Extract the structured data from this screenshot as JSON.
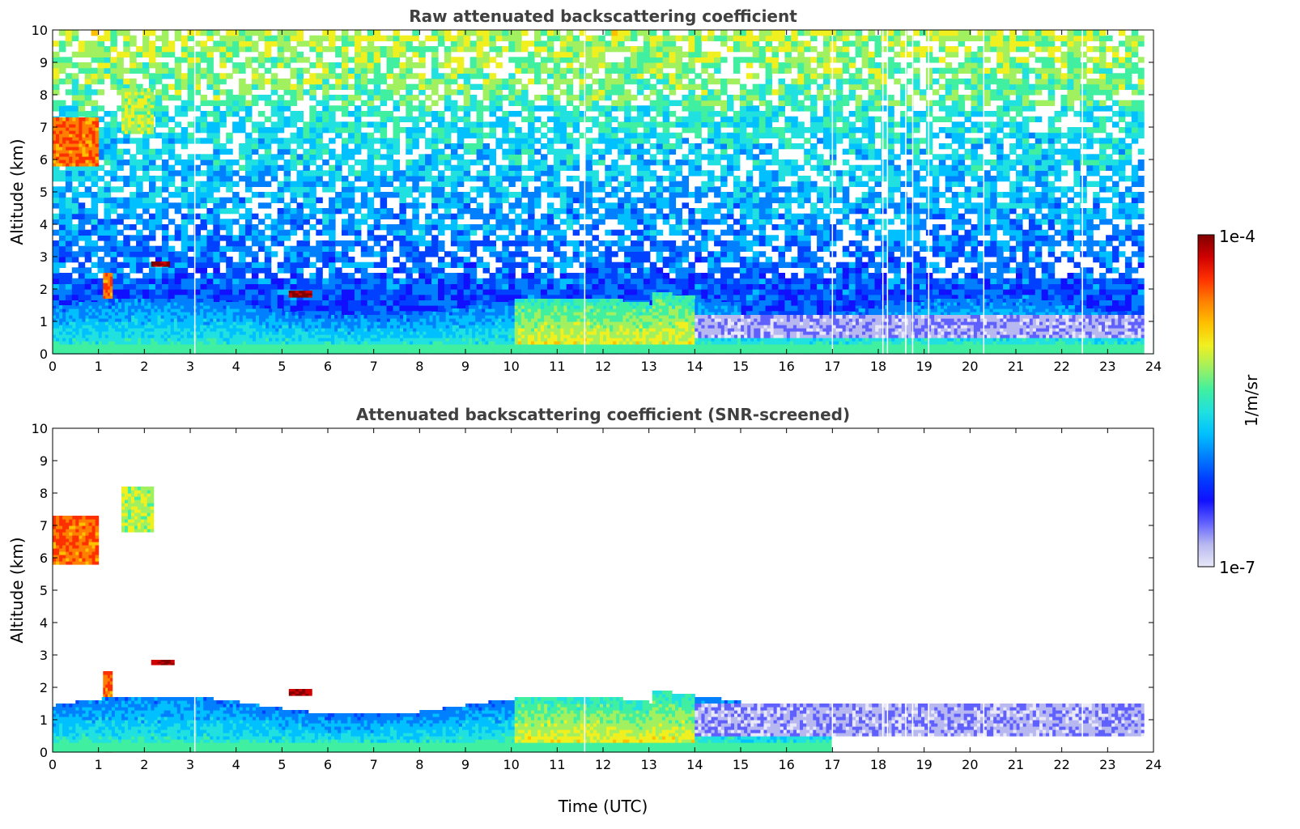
{
  "figure": {
    "colorbar": {
      "label": "1/m/sr",
      "max_label": "1e-4",
      "min_label": "1e-7",
      "scale": "log",
      "range": [
        1e-07,
        0.0001
      ],
      "colormap": [
        "#e8e8f8",
        "#b8b8f0",
        "#6060ff",
        "#1010ff",
        "#0040ff",
        "#0080ff",
        "#00c0ff",
        "#20e0e0",
        "#40f0a0",
        "#a0f060",
        "#f0f020",
        "#ffc000",
        "#ff8000",
        "#ff3000",
        "#d00000",
        "#800000"
      ]
    },
    "x_tick_labels": [
      "0",
      "1",
      "2",
      "3",
      "4",
      "5",
      "6",
      "7",
      "8",
      "9",
      "10",
      "11",
      "12",
      "13",
      "14",
      "15",
      "16",
      "17",
      "18",
      "19",
      "20",
      "21",
      "22",
      "23",
      "24"
    ],
    "y_tick_labels": [
      "0",
      "1",
      "2",
      "3",
      "4",
      "5",
      "6",
      "7",
      "8",
      "9",
      "10"
    ]
  },
  "chart_data": [
    {
      "type": "heatmap",
      "title": "Raw attenuated backscattering coefficient",
      "xlabel": "",
      "ylabel": "Altitude (km)",
      "xlim": [
        0,
        24
      ],
      "ylim": [
        0,
        10
      ],
      "grid": false,
      "color_scale": "log",
      "features": [
        {
          "kind": "cloud",
          "t": [
            0.0,
            1.0
          ],
          "z": [
            5.8,
            7.3
          ],
          "level": "high"
        },
        {
          "kind": "thin_cloud",
          "t": [
            1.5,
            2.2
          ],
          "z": [
            6.8,
            8.2
          ],
          "level": "medium"
        },
        {
          "kind": "precipitation_fall_streak",
          "t": [
            1.1,
            1.3
          ],
          "z": [
            0.0,
            2.5
          ],
          "level": "high"
        },
        {
          "kind": "cloud_layer",
          "t": [
            2.15,
            2.55
          ],
          "z": [
            2.7,
            2.85
          ],
          "level": "very_high"
        },
        {
          "kind": "cloud_layer",
          "t": [
            5.15,
            5.65
          ],
          "z": [
            1.75,
            1.95
          ],
          "level": "very_high"
        },
        {
          "kind": "boundary_layer",
          "t": [
            0.0,
            24.0
          ],
          "z": [
            0.0,
            2.0
          ],
          "level": "low_medium"
        },
        {
          "kind": "residual_aerosol",
          "t": [
            14.0,
            23.8
          ],
          "z": [
            0.5,
            1.2
          ],
          "level": "very_low"
        },
        {
          "kind": "missing_profiles",
          "t": [
            3.1,
            11.6,
            17.0,
            18.1,
            18.2,
            18.6,
            18.75,
            19.1,
            20.3,
            22.45
          ]
        }
      ]
    },
    {
      "type": "heatmap",
      "title": "Attenuated backscattering coefficient (SNR-screened)",
      "xlabel": "Time (UTC)",
      "ylabel": "Altitude (km)",
      "xlim": [
        0,
        24
      ],
      "ylim": [
        0,
        10
      ],
      "grid": false,
      "color_scale": "log",
      "features": [
        {
          "kind": "cloud",
          "t": [
            0.0,
            1.0
          ],
          "z": [
            5.8,
            7.3
          ],
          "level": "high"
        },
        {
          "kind": "thin_cloud",
          "t": [
            1.5,
            2.2
          ],
          "z": [
            6.8,
            8.2
          ],
          "level": "medium"
        },
        {
          "kind": "precipitation_fall_streak",
          "t": [
            1.1,
            1.3
          ],
          "z": [
            0.0,
            2.5
          ],
          "level": "high"
        },
        {
          "kind": "cloud_layer",
          "t": [
            2.15,
            2.65
          ],
          "z": [
            2.7,
            2.85
          ],
          "level": "very_high"
        },
        {
          "kind": "cloud_layer",
          "t": [
            5.15,
            5.65
          ],
          "z": [
            1.75,
            1.95
          ],
          "level": "very_high"
        },
        {
          "kind": "boundary_layer",
          "t": [
            0.0,
            17.0
          ],
          "z": [
            0.0,
            2.0
          ],
          "level": "low_medium"
        },
        {
          "kind": "residual_aerosol",
          "t": [
            14.0,
            23.8
          ],
          "z": [
            0.5,
            1.5
          ],
          "level": "very_low"
        },
        {
          "kind": "missing_profiles",
          "t": [
            3.1,
            11.6,
            17.0,
            18.1,
            18.2,
            18.6,
            18.75,
            19.1,
            20.3,
            22.45
          ]
        }
      ]
    }
  ]
}
